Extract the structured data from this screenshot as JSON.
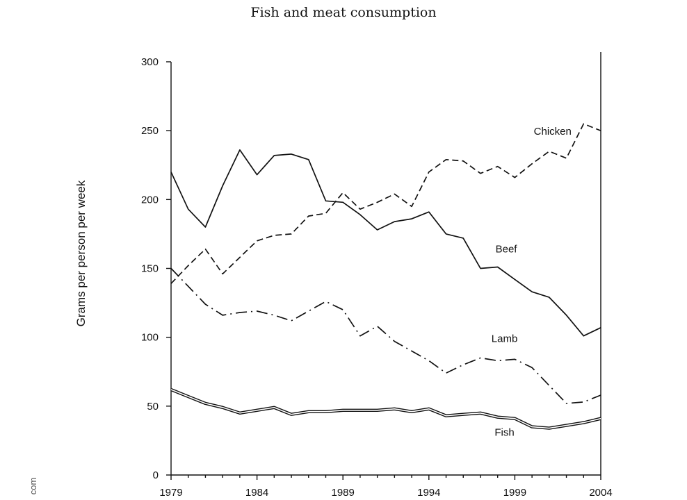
{
  "chart_data": {
    "type": "line",
    "title": "Fish and meat consumption",
    "xlabel": "",
    "ylabel": "Grams per person per week",
    "xlim": [
      1979,
      2004
    ],
    "ylim": [
      0,
      300
    ],
    "xticks": [
      1979,
      1984,
      1989,
      1994,
      1999,
      2004
    ],
    "yticks": [
      0,
      50,
      100,
      150,
      200,
      250,
      300
    ],
    "grid": false,
    "legend": "inline labels",
    "series": [
      {
        "name": "Chicken",
        "style": "dashed",
        "x": [
          1979,
          1980,
          1981,
          1982,
          1983,
          1984,
          1985,
          1986,
          1987,
          1988,
          1989,
          1990,
          1991,
          1992,
          1993,
          1994,
          1995,
          1996,
          1997,
          1998,
          1999,
          2000,
          2001,
          2002,
          2003,
          2004
        ],
        "values": [
          139,
          152,
          164,
          146,
          158,
          170,
          174,
          175,
          188,
          190,
          205,
          193,
          198,
          204,
          195,
          220,
          229,
          228,
          219,
          224,
          216,
          226,
          235,
          230,
          255,
          250
        ]
      },
      {
        "name": "Beef",
        "style": "solid",
        "x": [
          1979,
          1980,
          1981,
          1982,
          1983,
          1984,
          1985,
          1986,
          1987,
          1988,
          1989,
          1990,
          1991,
          1992,
          1993,
          1994,
          1995,
          1996,
          1997,
          1998,
          1999,
          2000,
          2001,
          2002,
          2003,
          2004
        ],
        "values": [
          220,
          193,
          180,
          210,
          236,
          218,
          232,
          233,
          229,
          199,
          198,
          189,
          178,
          184,
          186,
          191,
          175,
          172,
          150,
          151,
          142,
          133,
          129,
          116,
          101,
          107
        ]
      },
      {
        "name": "Lamb",
        "style": "dash-dot",
        "x": [
          1979,
          1980,
          1981,
          1982,
          1983,
          1984,
          1985,
          1986,
          1987,
          1988,
          1989,
          1990,
          1991,
          1992,
          1993,
          1994,
          1995,
          1996,
          1997,
          1998,
          1999,
          2000,
          2001,
          2002,
          2003,
          2004
        ],
        "values": [
          150,
          137,
          124,
          116,
          118,
          119,
          116,
          112,
          119,
          126,
          120,
          101,
          108,
          97,
          90,
          83,
          74,
          80,
          85,
          83,
          84,
          78,
          65,
          52,
          53,
          58
        ]
      },
      {
        "name": "Fish",
        "style": "double",
        "x": [
          1979,
          1980,
          1981,
          1982,
          1983,
          1984,
          1985,
          1986,
          1987,
          1988,
          1989,
          1990,
          1991,
          1992,
          1993,
          1994,
          1995,
          1996,
          1997,
          1998,
          1999,
          2000,
          2001,
          2002,
          2003,
          2004
        ],
        "values": [
          62,
          57,
          52,
          49,
          45,
          47,
          49,
          44,
          46,
          46,
          47,
          47,
          47,
          48,
          46,
          48,
          43,
          44,
          45,
          42,
          41,
          35,
          34,
          36,
          38,
          41
        ]
      }
    ],
    "labels": [
      {
        "text": "Chicken",
        "series": "Chicken"
      },
      {
        "text": "Beef",
        "series": "Beef"
      },
      {
        "text": "Lamb",
        "series": "Lamb"
      },
      {
        "text": "Fish",
        "series": "Fish"
      }
    ]
  },
  "edge_text": "com"
}
